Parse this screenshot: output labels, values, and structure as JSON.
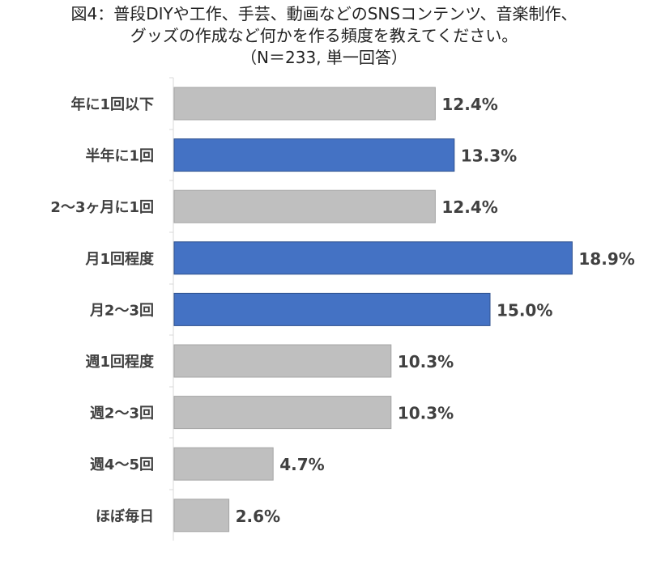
{
  "title": {
    "line1": "図4：普段DIYや工作、手芸、動画などのSNSコンテンツ、音楽制作、",
    "line2": "グッズの作成など何かを作る頻度を教えてください。",
    "line3": "（N＝233, 単一回答）"
  },
  "colors": {
    "highlight": "#4472C4",
    "highlight_border": "#2F528F",
    "default": "#BFBFBF",
    "default_border": "#A6A6A6",
    "axis": "#D9D9D9",
    "text": "#404040"
  },
  "chart_data": {
    "type": "bar",
    "orientation": "horizontal",
    "categories": [
      "年に1回以下",
      "半年に1回",
      "2～3ヶ月に1回",
      "月1回程度",
      "月2～3回",
      "週1回程度",
      "週2～3回",
      "週4～5回",
      "ほぼ毎日"
    ],
    "values": [
      12.4,
      13.3,
      12.4,
      18.9,
      15.0,
      10.3,
      10.3,
      4.7,
      2.6
    ],
    "value_labels": [
      "12.4%",
      "13.3%",
      "12.4%",
      "18.9%",
      "15.0%",
      "10.3%",
      "10.3%",
      "4.7%",
      "2.6%"
    ],
    "highlighted": [
      false,
      true,
      false,
      true,
      true,
      false,
      false,
      false,
      false
    ],
    "unit": "%",
    "xlim": [
      0,
      20
    ],
    "grid": false,
    "legend": "none"
  }
}
